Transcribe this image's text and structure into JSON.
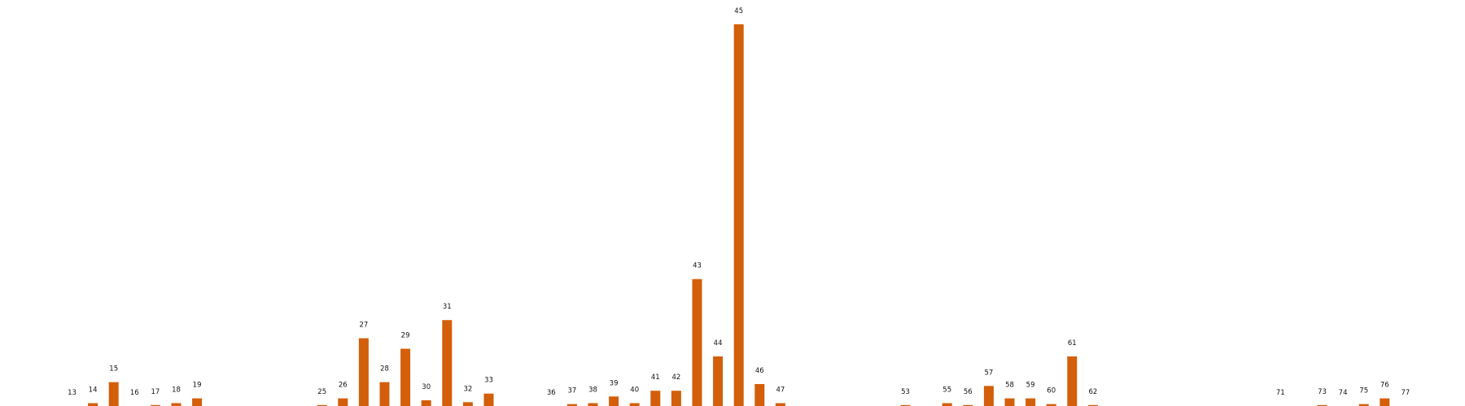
{
  "chart_data": {
    "type": "bar",
    "title": "",
    "xlabel": "",
    "ylabel": "",
    "bar_color": "#d35f0a",
    "label_color": "#111111",
    "background": "#ffffff",
    "grid": false,
    "axes_visible": false,
    "ylim": [
      0,
      40.5
    ],
    "categories": [
      "13",
      "14",
      "15",
      "16",
      "17",
      "18",
      "19",
      "25",
      "26",
      "27",
      "28",
      "29",
      "30",
      "31",
      "32",
      "33",
      "36",
      "37",
      "38",
      "39",
      "40",
      "41",
      "42",
      "43",
      "44",
      "45",
      "46",
      "47",
      "53",
      "55",
      "56",
      "57",
      "58",
      "59",
      "60",
      "61",
      "62",
      "71",
      "73",
      "74",
      "75",
      "76",
      "77"
    ],
    "x": [
      13,
      14,
      15,
      16,
      17,
      18,
      19,
      25,
      26,
      27,
      28,
      29,
      30,
      31,
      32,
      33,
      36,
      37,
      38,
      39,
      40,
      41,
      42,
      43,
      44,
      45,
      46,
      47,
      53,
      55,
      56,
      57,
      58,
      59,
      60,
      61,
      62,
      71,
      73,
      74,
      75,
      76,
      77
    ],
    "values": [
      0,
      0.3,
      2.5,
      0,
      0.1,
      0.3,
      0.8,
      0.1,
      0.8,
      7.1,
      2.5,
      6,
      0.6,
      9,
      0.4,
      1.3,
      0,
      0.2,
      0.3,
      1,
      0.3,
      1.6,
      1.6,
      13.3,
      5.2,
      40,
      2.3,
      0.3,
      0.1,
      0.3,
      0.1,
      2.1,
      0.8,
      0.8,
      0.2,
      5.2,
      0.1,
      0,
      0.1,
      0,
      0.2,
      0.8,
      0
    ]
  }
}
